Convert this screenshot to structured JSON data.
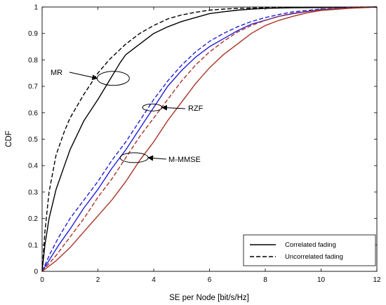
{
  "chart_data": {
    "type": "line",
    "xlabel": "SE per Node [bit/s/Hz]",
    "ylabel": "CDF",
    "xlim": [
      0,
      12
    ],
    "ylim": [
      0,
      1
    ],
    "x_ticks": [
      "0",
      "2",
      "4",
      "6",
      "8",
      "10",
      "12"
    ],
    "y_ticks": [
      "0",
      "0.1",
      "0.2",
      "0.3",
      "0.4",
      "0.5",
      "0.6",
      "0.7",
      "0.8",
      "0.9",
      "1"
    ],
    "grid": false,
    "legend": {
      "placement": "bottom-right",
      "entries": [
        {
          "label": "Correlated fading",
          "style": "solid"
        },
        {
          "label": "Uncorrelated fading",
          "style": "dashed"
        }
      ]
    },
    "annotations": [
      {
        "text": "MR",
        "ellipse_center": [
          2.55,
          0.73
        ]
      },
      {
        "text": "RZF",
        "ellipse_center": [
          3.95,
          0.62
        ]
      },
      {
        "text": "M-MMSE",
        "ellipse_center": [
          3.3,
          0.43
        ]
      }
    ],
    "colors": {
      "MR": "#000000",
      "RZF": "#1f1fd8",
      "M-MMSE": "#a83226"
    },
    "series": [
      {
        "group": "MR",
        "style": "solid",
        "color": "#000000",
        "x": [
          0,
          0.1,
          0.25,
          0.5,
          0.8,
          1.0,
          1.5,
          2.0,
          2.4,
          2.8,
          3.0,
          3.5,
          4.0,
          4.5,
          5.0,
          5.5,
          6.0,
          6.5,
          7.0,
          7.5,
          8.0,
          9.0,
          10.0,
          11.0,
          12.0
        ],
        "y": [
          0,
          0.1,
          0.2,
          0.31,
          0.4,
          0.46,
          0.57,
          0.65,
          0.72,
          0.79,
          0.82,
          0.86,
          0.9,
          0.925,
          0.945,
          0.96,
          0.975,
          0.982,
          0.988,
          0.992,
          0.995,
          0.997,
          0.998,
          0.999,
          1.0
        ]
      },
      {
        "group": "MR",
        "style": "dashed",
        "color": "#000000",
        "x": [
          0,
          0.1,
          0.25,
          0.5,
          0.8,
          1.0,
          1.5,
          2.0,
          2.4,
          2.8,
          3.0,
          3.5,
          4.0,
          4.5,
          5.0,
          5.5,
          6.0,
          6.5,
          7.0,
          8.0,
          9.0,
          10.0,
          11.0,
          12.0
        ],
        "y": [
          0,
          0.15,
          0.3,
          0.44,
          0.53,
          0.58,
          0.67,
          0.75,
          0.8,
          0.84,
          0.86,
          0.9,
          0.93,
          0.955,
          0.97,
          0.98,
          0.988,
          0.992,
          0.995,
          0.997,
          0.998,
          0.999,
          0.9995,
          1.0
        ]
      },
      {
        "group": "RZF",
        "style": "solid",
        "color": "#1f1fd8",
        "x": [
          0,
          0.3,
          0.6,
          1.0,
          1.5,
          2.0,
          2.5,
          3.0,
          3.5,
          4.0,
          4.5,
          5.0,
          5.5,
          6.0,
          6.5,
          7.0,
          7.5,
          8.0,
          8.5,
          9.0,
          9.5,
          10.0,
          11.0,
          12.0
        ],
        "y": [
          0,
          0.05,
          0.1,
          0.16,
          0.24,
          0.31,
          0.39,
          0.46,
          0.54,
          0.62,
          0.7,
          0.76,
          0.81,
          0.85,
          0.88,
          0.91,
          0.935,
          0.95,
          0.965,
          0.975,
          0.983,
          0.99,
          0.996,
          1.0
        ]
      },
      {
        "group": "RZF",
        "style": "dashed",
        "color": "#1f1fd8",
        "x": [
          0,
          0.3,
          0.6,
          1.0,
          1.5,
          2.0,
          2.5,
          3.0,
          3.5,
          4.0,
          4.5,
          5.0,
          5.5,
          6.0,
          6.5,
          7.0,
          7.5,
          8.0,
          8.5,
          9.0,
          10.0,
          11.0,
          12.0
        ],
        "y": [
          0,
          0.07,
          0.13,
          0.2,
          0.27,
          0.34,
          0.42,
          0.49,
          0.57,
          0.65,
          0.72,
          0.78,
          0.83,
          0.87,
          0.9,
          0.925,
          0.945,
          0.96,
          0.972,
          0.982,
          0.992,
          0.997,
          1.0
        ]
      },
      {
        "group": "M-MMSE",
        "style": "solid",
        "color": "#a83226",
        "x": [
          0,
          0.5,
          1.0,
          1.5,
          2.0,
          2.5,
          3.0,
          3.5,
          4.0,
          4.5,
          5.0,
          5.5,
          6.0,
          6.5,
          7.0,
          7.5,
          8.0,
          8.5,
          9.0,
          9.5,
          10.0,
          11.0,
          12.0
        ],
        "y": [
          0,
          0.04,
          0.09,
          0.15,
          0.21,
          0.27,
          0.34,
          0.42,
          0.49,
          0.57,
          0.64,
          0.71,
          0.77,
          0.82,
          0.86,
          0.9,
          0.93,
          0.95,
          0.965,
          0.978,
          0.987,
          0.995,
          1.0
        ]
      },
      {
        "group": "M-MMSE",
        "style": "dashed",
        "color": "#a83226",
        "x": [
          0,
          0.5,
          1.0,
          1.5,
          2.0,
          2.5,
          3.0,
          3.5,
          4.0,
          4.5,
          5.0,
          5.5,
          6.0,
          6.5,
          7.0,
          7.5,
          8.0,
          8.5,
          9.0,
          10.0,
          11.0,
          12.0
        ],
        "y": [
          0,
          0.06,
          0.13,
          0.2,
          0.28,
          0.35,
          0.43,
          0.51,
          0.58,
          0.65,
          0.72,
          0.78,
          0.83,
          0.87,
          0.905,
          0.93,
          0.95,
          0.965,
          0.977,
          0.99,
          0.997,
          1.0
        ]
      }
    ]
  }
}
